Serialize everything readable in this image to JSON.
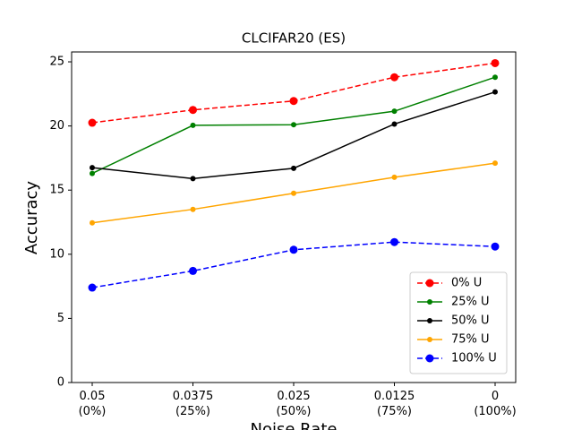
{
  "chart_data": {
    "type": "line",
    "title": "CLCIFAR20 (ES)",
    "xlabel": "Noise Rate",
    "ylabel": "Accuracy",
    "categories": [
      "0.05\n(0%)",
      "0.0375\n(25%)",
      "0.025\n(50%)",
      "0.0125\n(75%)",
      "0\n(100%)"
    ],
    "ylim": [
      0,
      25.77
    ],
    "yticks": [
      0,
      5,
      10,
      15,
      20,
      25
    ],
    "legend": "lower right",
    "series": [
      {
        "name": "0% U",
        "color": "red",
        "linestyle": "dashed",
        "marker": "large",
        "values": [
          20.25,
          21.25,
          21.95,
          23.8,
          24.9
        ]
      },
      {
        "name": "25% U",
        "color": "green",
        "linestyle": "solid",
        "marker": "small",
        "values": [
          16.3,
          20.05,
          20.1,
          21.15,
          23.8
        ]
      },
      {
        "name": "50% U",
        "color": "black",
        "linestyle": "solid",
        "marker": "small",
        "values": [
          16.75,
          15.9,
          16.7,
          20.15,
          22.65
        ]
      },
      {
        "name": "75% U",
        "color": "orange",
        "linestyle": "solid",
        "marker": "small",
        "values": [
          12.45,
          13.5,
          14.75,
          16.0,
          17.1
        ]
      },
      {
        "name": "100% U",
        "color": "blue",
        "linestyle": "dashed",
        "marker": "large",
        "values": [
          7.4,
          8.7,
          10.35,
          10.95,
          10.6
        ]
      }
    ]
  }
}
